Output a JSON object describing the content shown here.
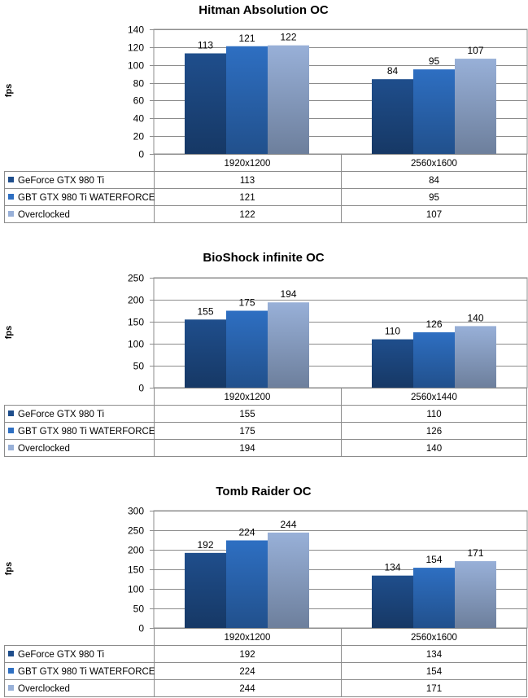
{
  "chart_data": [
    {
      "type": "bar",
      "title": "Hitman Absolution OC",
      "ylabel": "fps",
      "ylim": [
        0,
        140
      ],
      "ytick_step": 20,
      "yticks": [
        "0",
        "20",
        "40",
        "60",
        "80",
        "100",
        "120",
        "140"
      ],
      "categories": [
        "1920x1200",
        "2560x1600"
      ],
      "series": [
        {
          "name": "GeForce GTX 980 Ti",
          "values": [
            113,
            84
          ],
          "labels": [
            "113",
            "84"
          ],
          "color": "#1f4e8c"
        },
        {
          "name": "GBT GTX 980 Ti WATERFORCE",
          "values": [
            121,
            95
          ],
          "labels": [
            "121",
            "95"
          ],
          "color": "#2e6fc2"
        },
        {
          "name": "Overclocked",
          "values": [
            122,
            107
          ],
          "labels": [
            "122",
            "107"
          ],
          "color": "#98b0d8"
        }
      ],
      "legend": "data-table-below",
      "grid": true
    },
    {
      "type": "bar",
      "title": "BioShock infinite OC",
      "ylabel": "fps",
      "ylim": [
        0,
        250
      ],
      "ytick_step": 50,
      "yticks": [
        "0",
        "50",
        "100",
        "150",
        "200",
        "250"
      ],
      "categories": [
        "1920x1200",
        "2560x1440"
      ],
      "series": [
        {
          "name": "GeForce GTX 980 Ti",
          "values": [
            155,
            110
          ],
          "labels": [
            "155",
            "110"
          ],
          "color": "#1f4e8c"
        },
        {
          "name": "GBT GTX 980 Ti WATERFORCE",
          "values": [
            175,
            126
          ],
          "labels": [
            "175",
            "126"
          ],
          "color": "#2e6fc2"
        },
        {
          "name": "Overclocked",
          "values": [
            194,
            140
          ],
          "labels": [
            "194",
            "140"
          ],
          "color": "#98b0d8"
        }
      ],
      "legend": "data-table-below",
      "grid": true
    },
    {
      "type": "bar",
      "title": "Tomb Raider OC",
      "ylabel": "fps",
      "ylim": [
        0,
        300
      ],
      "ytick_step": 50,
      "yticks": [
        "0",
        "50",
        "100",
        "150",
        "200",
        "250",
        "300"
      ],
      "categories": [
        "1920x1200",
        "2560x1600"
      ],
      "series": [
        {
          "name": "GeForce GTX 980 Ti",
          "values": [
            192,
            134
          ],
          "labels": [
            "192",
            "134"
          ],
          "color": "#1f4e8c"
        },
        {
          "name": "GBT GTX 980 Ti WATERFORCE",
          "values": [
            224,
            154
          ],
          "labels": [
            "224",
            "154"
          ],
          "color": "#2e6fc2"
        },
        {
          "name": "Overclocked",
          "values": [
            244,
            171
          ],
          "labels": [
            "244",
            "171"
          ],
          "color": "#98b0d8"
        }
      ],
      "legend": "data-table-below",
      "grid": true
    }
  ]
}
